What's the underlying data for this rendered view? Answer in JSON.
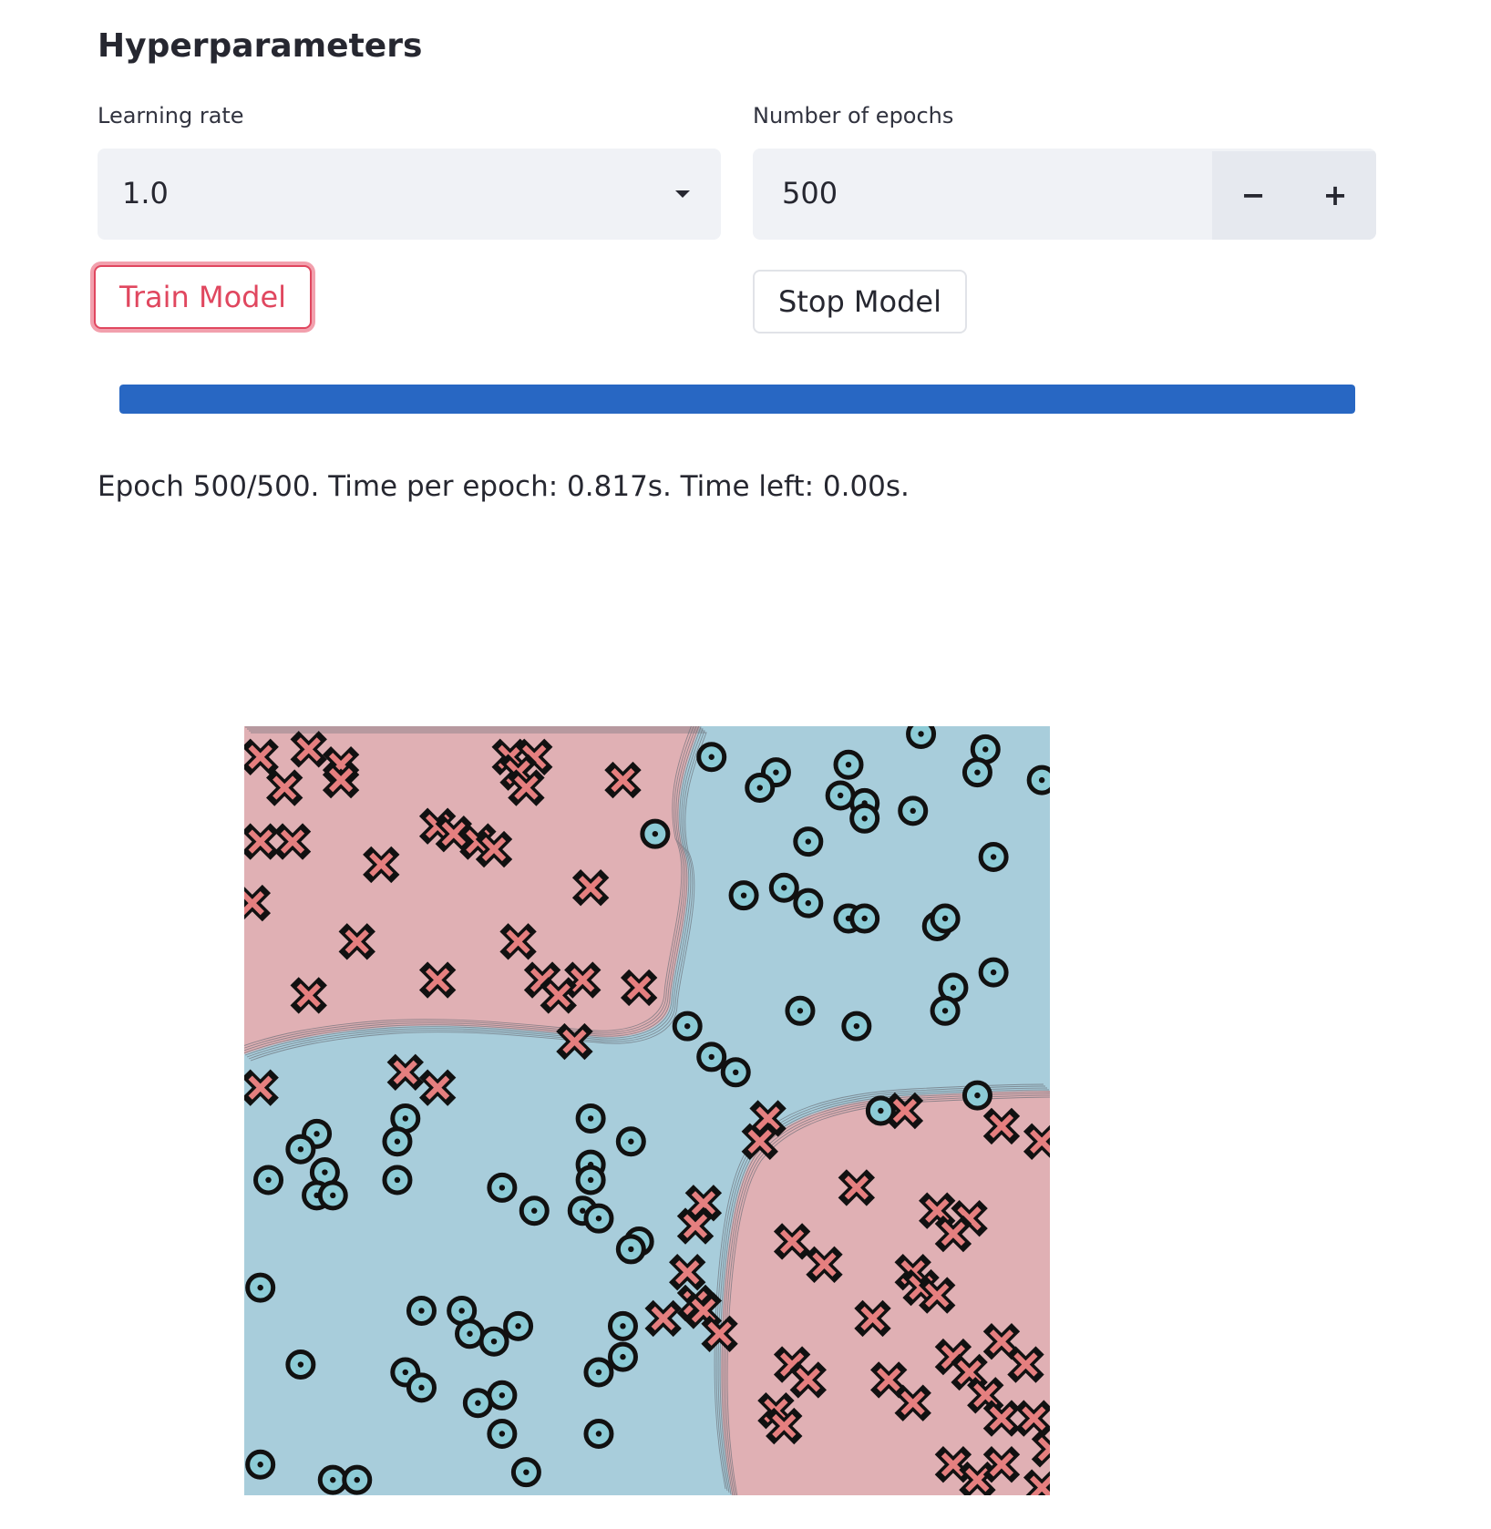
{
  "page": {
    "heading": "Hyperparameters"
  },
  "learning_rate": {
    "label": "Learning rate",
    "value": "1.0"
  },
  "epochs": {
    "label": "Number of epochs",
    "value": "500",
    "decrement": "−",
    "increment": "+"
  },
  "buttons": {
    "train": "Train Model",
    "stop": "Stop Model"
  },
  "progress": {
    "fraction": 1.0,
    "status": "Epoch 500/500. Time per epoch: 0.817s. Time left: 0.00s."
  },
  "chart_data": {
    "type": "scatter",
    "title": "",
    "xlim": [
      0,
      1
    ],
    "ylim": [
      0,
      1
    ],
    "colors": {
      "class_x_region": "#e0b0b4",
      "class_o_region": "#a8cddb",
      "class_x_marker": "#e57f7f",
      "class_o_marker": "#8ccbd6"
    },
    "series": [
      {
        "marker": "x",
        "points": [
          [
            0.02,
            0.96
          ],
          [
            0.08,
            0.97
          ],
          [
            0.12,
            0.95
          ],
          [
            0.05,
            0.92
          ],
          [
            0.12,
            0.93
          ],
          [
            0.33,
            0.96
          ],
          [
            0.36,
            0.96
          ],
          [
            0.34,
            0.94
          ],
          [
            0.35,
            0.92
          ],
          [
            0.47,
            0.93
          ],
          [
            0.02,
            0.85
          ],
          [
            0.06,
            0.85
          ],
          [
            0.24,
            0.87
          ],
          [
            0.26,
            0.86
          ],
          [
            0.29,
            0.85
          ],
          [
            0.31,
            0.84
          ],
          [
            0.17,
            0.82
          ],
          [
            0.43,
            0.79
          ],
          [
            0.01,
            0.77
          ],
          [
            0.14,
            0.72
          ],
          [
            0.34,
            0.72
          ],
          [
            0.24,
            0.67
          ],
          [
            0.37,
            0.67
          ],
          [
            0.42,
            0.67
          ],
          [
            0.39,
            0.65
          ],
          [
            0.49,
            0.66
          ],
          [
            0.08,
            0.65
          ],
          [
            0.41,
            0.59
          ],
          [
            0.02,
            0.53
          ],
          [
            0.2,
            0.55
          ],
          [
            0.24,
            0.53
          ],
          [
            0.65,
            0.49
          ],
          [
            0.64,
            0.46
          ],
          [
            0.82,
            0.5
          ],
          [
            0.94,
            0.48
          ],
          [
            0.99,
            0.46
          ],
          [
            0.57,
            0.38
          ],
          [
            0.56,
            0.35
          ],
          [
            0.76,
            0.4
          ],
          [
            0.86,
            0.37
          ],
          [
            0.9,
            0.36
          ],
          [
            0.88,
            0.34
          ],
          [
            0.68,
            0.33
          ],
          [
            0.72,
            0.3
          ],
          [
            0.55,
            0.29
          ],
          [
            0.56,
            0.25
          ],
          [
            0.83,
            0.29
          ],
          [
            0.84,
            0.27
          ],
          [
            0.86,
            0.26
          ],
          [
            0.52,
            0.23
          ],
          [
            0.57,
            0.24
          ],
          [
            0.78,
            0.23
          ],
          [
            0.94,
            0.2
          ],
          [
            0.88,
            0.18
          ],
          [
            0.9,
            0.16
          ],
          [
            0.59,
            0.21
          ],
          [
            0.68,
            0.17
          ],
          [
            0.7,
            0.15
          ],
          [
            0.8,
            0.15
          ],
          [
            0.83,
            0.12
          ],
          [
            0.92,
            0.13
          ],
          [
            0.97,
            0.17
          ],
          [
            0.94,
            0.1
          ],
          [
            0.98,
            0.1
          ],
          [
            0.66,
            0.11
          ],
          [
            0.67,
            0.09
          ],
          [
            0.88,
            0.04
          ],
          [
            0.91,
            0.02
          ],
          [
            0.94,
            0.04
          ],
          [
            0.99,
            0.01
          ],
          [
            1.0,
            0.06
          ]
        ]
      },
      {
        "marker": "o",
        "points": [
          [
            0.58,
            0.96
          ],
          [
            0.66,
            0.94
          ],
          [
            0.64,
            0.92
          ],
          [
            0.75,
            0.95
          ],
          [
            0.84,
            0.99
          ],
          [
            0.92,
            0.97
          ],
          [
            0.91,
            0.94
          ],
          [
            0.99,
            0.93
          ],
          [
            0.74,
            0.91
          ],
          [
            0.77,
            0.9
          ],
          [
            0.83,
            0.89
          ],
          [
            0.51,
            0.86
          ],
          [
            0.7,
            0.85
          ],
          [
            0.77,
            0.88
          ],
          [
            0.93,
            0.83
          ],
          [
            0.62,
            0.78
          ],
          [
            0.67,
            0.79
          ],
          [
            0.7,
            0.77
          ],
          [
            0.75,
            0.75
          ],
          [
            0.77,
            0.75
          ],
          [
            0.86,
            0.74
          ],
          [
            0.87,
            0.75
          ],
          [
            0.93,
            0.68
          ],
          [
            0.88,
            0.66
          ],
          [
            0.87,
            0.63
          ],
          [
            0.69,
            0.63
          ],
          [
            0.76,
            0.61
          ],
          [
            0.55,
            0.61
          ],
          [
            0.61,
            0.55
          ],
          [
            0.58,
            0.57
          ],
          [
            0.79,
            0.5
          ],
          [
            0.91,
            0.52
          ],
          [
            0.09,
            0.47
          ],
          [
            0.07,
            0.45
          ],
          [
            0.1,
            0.42
          ],
          [
            0.2,
            0.49
          ],
          [
            0.19,
            0.46
          ],
          [
            0.19,
            0.41
          ],
          [
            0.03,
            0.41
          ],
          [
            0.09,
            0.39
          ],
          [
            0.11,
            0.39
          ],
          [
            0.43,
            0.49
          ],
          [
            0.48,
            0.46
          ],
          [
            0.43,
            0.43
          ],
          [
            0.43,
            0.41
          ],
          [
            0.42,
            0.37
          ],
          [
            0.44,
            0.36
          ],
          [
            0.32,
            0.4
          ],
          [
            0.36,
            0.37
          ],
          [
            0.49,
            0.33
          ],
          [
            0.48,
            0.32
          ],
          [
            0.02,
            0.27
          ],
          [
            0.22,
            0.24
          ],
          [
            0.27,
            0.24
          ],
          [
            0.28,
            0.21
          ],
          [
            0.31,
            0.2
          ],
          [
            0.34,
            0.22
          ],
          [
            0.47,
            0.22
          ],
          [
            0.07,
            0.17
          ],
          [
            0.2,
            0.16
          ],
          [
            0.22,
            0.14
          ],
          [
            0.32,
            0.13
          ],
          [
            0.29,
            0.12
          ],
          [
            0.32,
            0.08
          ],
          [
            0.44,
            0.16
          ],
          [
            0.47,
            0.18
          ],
          [
            0.02,
            0.04
          ],
          [
            0.11,
            0.02
          ],
          [
            0.14,
            0.02
          ],
          [
            0.35,
            0.03
          ],
          [
            0.44,
            0.08
          ]
        ]
      }
    ]
  }
}
